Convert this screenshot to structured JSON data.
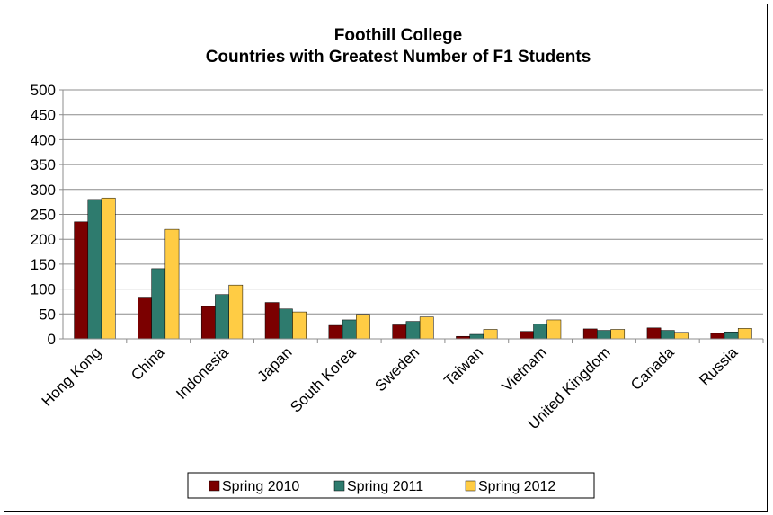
{
  "chart_data": {
    "type": "bar",
    "title": "Foothill College",
    "subtitle": "Countries with Greatest Number of F1 Students",
    "xlabel": "",
    "ylabel": "",
    "ylim": [
      0,
      500
    ],
    "yticks": [
      0,
      50,
      100,
      150,
      200,
      250,
      300,
      350,
      400,
      450,
      500
    ],
    "grid": true,
    "legend_position": "bottom",
    "categories": [
      "Hong Kong",
      "China",
      "Indonesia",
      "Japan",
      "South Korea",
      "Sweden",
      "Taiwan",
      "Vietnam",
      "United Kingdom",
      "Canada",
      "Russia"
    ],
    "series": [
      {
        "name": "Spring 2010",
        "color": "#7B0000",
        "values": [
          235,
          82,
          65,
          73,
          27,
          28,
          5,
          15,
          20,
          22,
          11
        ]
      },
      {
        "name": "Spring 2011",
        "color": "#2E7B6E",
        "values": [
          280,
          141,
          89,
          60,
          38,
          35,
          9,
          30,
          17,
          17,
          14
        ]
      },
      {
        "name": "Spring 2012",
        "color": "#FFCC44",
        "values": [
          283,
          220,
          108,
          54,
          49,
          44,
          19,
          38,
          19,
          13,
          21
        ]
      }
    ]
  }
}
